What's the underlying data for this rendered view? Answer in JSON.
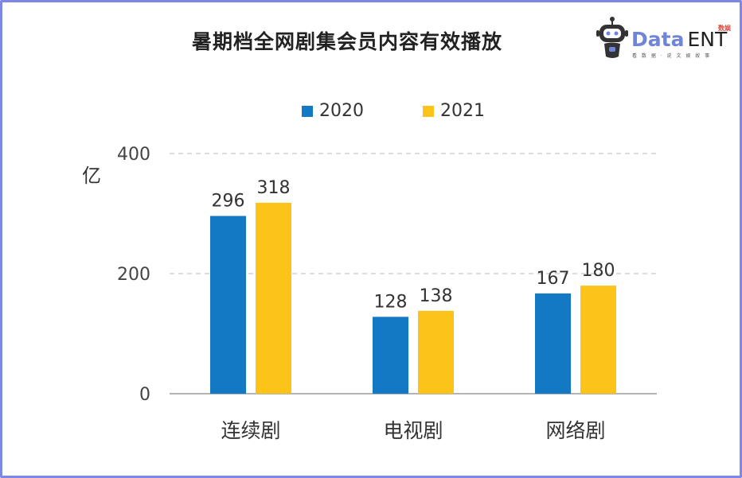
{
  "header": {
    "title": "暑期档全网剧集会员内容有效播放",
    "logo": {
      "word1": "Data",
      "word2": "ENT",
      "tag": "数娱",
      "sub": "看 数 据 · 说 文 娱 故 事"
    }
  },
  "colors": {
    "series_2020": "#1479c4",
    "series_2021": "#fcc419",
    "grid": "#c8c8c8",
    "axis": "#9a9a9a",
    "frame": "#7c87e6"
  },
  "chart_data": {
    "type": "bar",
    "unit_label": "亿",
    "categories": [
      "连续剧",
      "电视剧",
      "网络剧"
    ],
    "series": [
      {
        "name": "2020",
        "values": [
          296,
          128,
          167
        ]
      },
      {
        "name": "2021",
        "values": [
          318,
          138,
          180
        ]
      }
    ],
    "ylim": [
      0,
      400
    ],
    "yticks": [
      0,
      200,
      400
    ],
    "grid": true,
    "legend_position": "top-center",
    "data_labels": true
  }
}
